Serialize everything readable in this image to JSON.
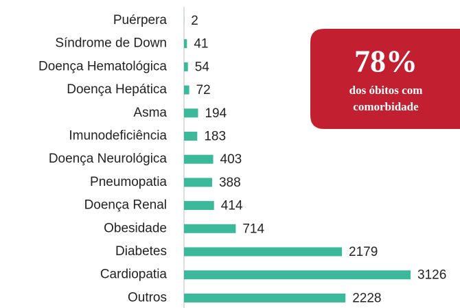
{
  "chart_data": {
    "type": "hbar",
    "categories": [
      "Puérpera",
      "Síndrome de Down",
      "Doença Hematológica",
      "Doença Hepática",
      "Asma",
      "Imunodeficiência",
      "Doença Neurológica",
      "Pneumopatia",
      "Doença Renal",
      "Obesidade",
      "Diabetes",
      "Cardiopatia",
      "Outros"
    ],
    "values": [
      2,
      41,
      54,
      72,
      194,
      183,
      403,
      388,
      414,
      714,
      2179,
      3126,
      2228
    ],
    "color": "#3cb89b",
    "annotation": {
      "headline": "78%",
      "text": [
        "dos óbitos com",
        "comorbidade"
      ],
      "color": "#c21f30"
    }
  }
}
